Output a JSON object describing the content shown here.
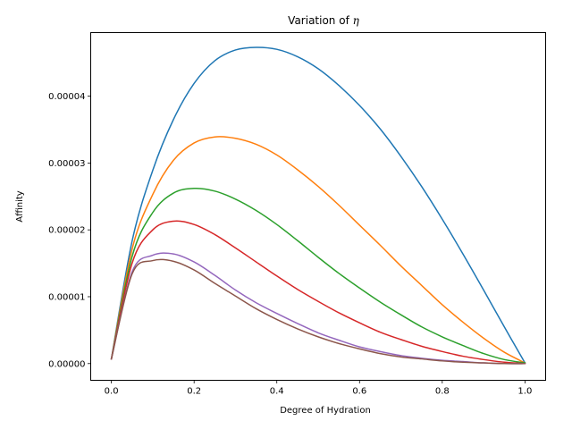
{
  "chart_data": {
    "type": "line",
    "title_prefix": "Variation of ",
    "title_symbol": "η",
    "xlabel": "Degree of Hydration",
    "ylabel": "Affinity",
    "xlim": [
      -0.05,
      1.05
    ],
    "ylim": [
      -2.5e-06,
      4.95e-05
    ],
    "xticks": [
      0.0,
      0.2,
      0.4,
      0.6,
      0.8,
      1.0
    ],
    "xtick_labels": [
      "0.0",
      "0.2",
      "0.4",
      "0.6",
      "0.8",
      "1.0"
    ],
    "yticks": [
      0.0,
      1e-05,
      2e-05,
      3e-05,
      4e-05
    ],
    "ytick_labels": [
      "0.00000",
      "0.00001",
      "0.00002",
      "0.00003",
      "0.00004"
    ],
    "grid": false,
    "legend": "none",
    "x": [
      0.0,
      0.05,
      0.1,
      0.15,
      0.2,
      0.25,
      0.3,
      0.35,
      0.4,
      0.45,
      0.5,
      0.55,
      0.6,
      0.65,
      0.7,
      0.75,
      0.8,
      0.85,
      0.9,
      0.95,
      1.0
    ],
    "series": [
      {
        "color": "#1f77b4",
        "values": [
          7e-07,
          1.83e-05,
          2.89e-05,
          3.65e-05,
          4.19e-05,
          4.53e-05,
          4.69e-05,
          4.73e-05,
          4.7e-05,
          4.59e-05,
          4.41e-05,
          4.16e-05,
          3.86e-05,
          3.51e-05,
          3.1e-05,
          2.65e-05,
          2.16e-05,
          1.64e-05,
          1.1e-05,
          5.5e-06,
          1e-07
        ]
      },
      {
        "color": "#ff7f0e",
        "values": [
          7e-07,
          1.71e-05,
          2.53e-05,
          3.04e-05,
          3.3e-05,
          3.39e-05,
          3.37e-05,
          3.28e-05,
          3.12e-05,
          2.9e-05,
          2.65e-05,
          2.37e-05,
          2.07e-05,
          1.77e-05,
          1.46e-05,
          1.17e-05,
          8.8e-06,
          6.2e-06,
          3.8e-06,
          1.7e-06,
          1e-07
        ]
      },
      {
        "color": "#2ca02c",
        "values": [
          7e-07,
          1.6e-05,
          2.26e-05,
          2.55e-05,
          2.62e-05,
          2.58e-05,
          2.46e-05,
          2.29e-05,
          2.08e-05,
          1.84e-05,
          1.59e-05,
          1.35e-05,
          1.13e-05,
          9.2e-06,
          7.3e-06,
          5.5e-06,
          4e-06,
          2.7e-06,
          1.5e-06,
          6e-07,
          1e-07
        ]
      },
      {
        "color": "#d62728",
        "values": [
          7e-07,
          1.5e-05,
          2e-05,
          2.13e-05,
          2.08e-05,
          1.93e-05,
          1.73e-05,
          1.52e-05,
          1.31e-05,
          1.11e-05,
          9.3e-06,
          7.6e-06,
          6.1e-06,
          4.7e-06,
          3.6e-06,
          2.6e-06,
          1.8e-06,
          1.1e-06,
          6e-07,
          2e-07,
          0.0
        ]
      },
      {
        "color": "#9467bd",
        "values": [
          7e-07,
          1.37e-05,
          1.62e-05,
          1.64e-05,
          1.52e-05,
          1.32e-05,
          1.1e-05,
          9.1e-06,
          7.5e-06,
          6e-06,
          4.6e-06,
          3.5e-06,
          2.5e-06,
          1.8e-06,
          1.2e-06,
          8e-07,
          5e-07,
          3e-07,
          1e-07,
          0.0,
          0.0
        ]
      },
      {
        "color": "#8c564b",
        "values": [
          7e-07,
          1.34e-05,
          1.54e-05,
          1.53e-05,
          1.4e-05,
          1.2e-05,
          1.01e-05,
          8.2e-06,
          6.6e-06,
          5.2e-06,
          4e-06,
          3e-06,
          2.2e-06,
          1.5e-06,
          1e-06,
          7e-07,
          4e-07,
          2e-07,
          1e-07,
          0.0,
          0.0
        ]
      }
    ]
  }
}
